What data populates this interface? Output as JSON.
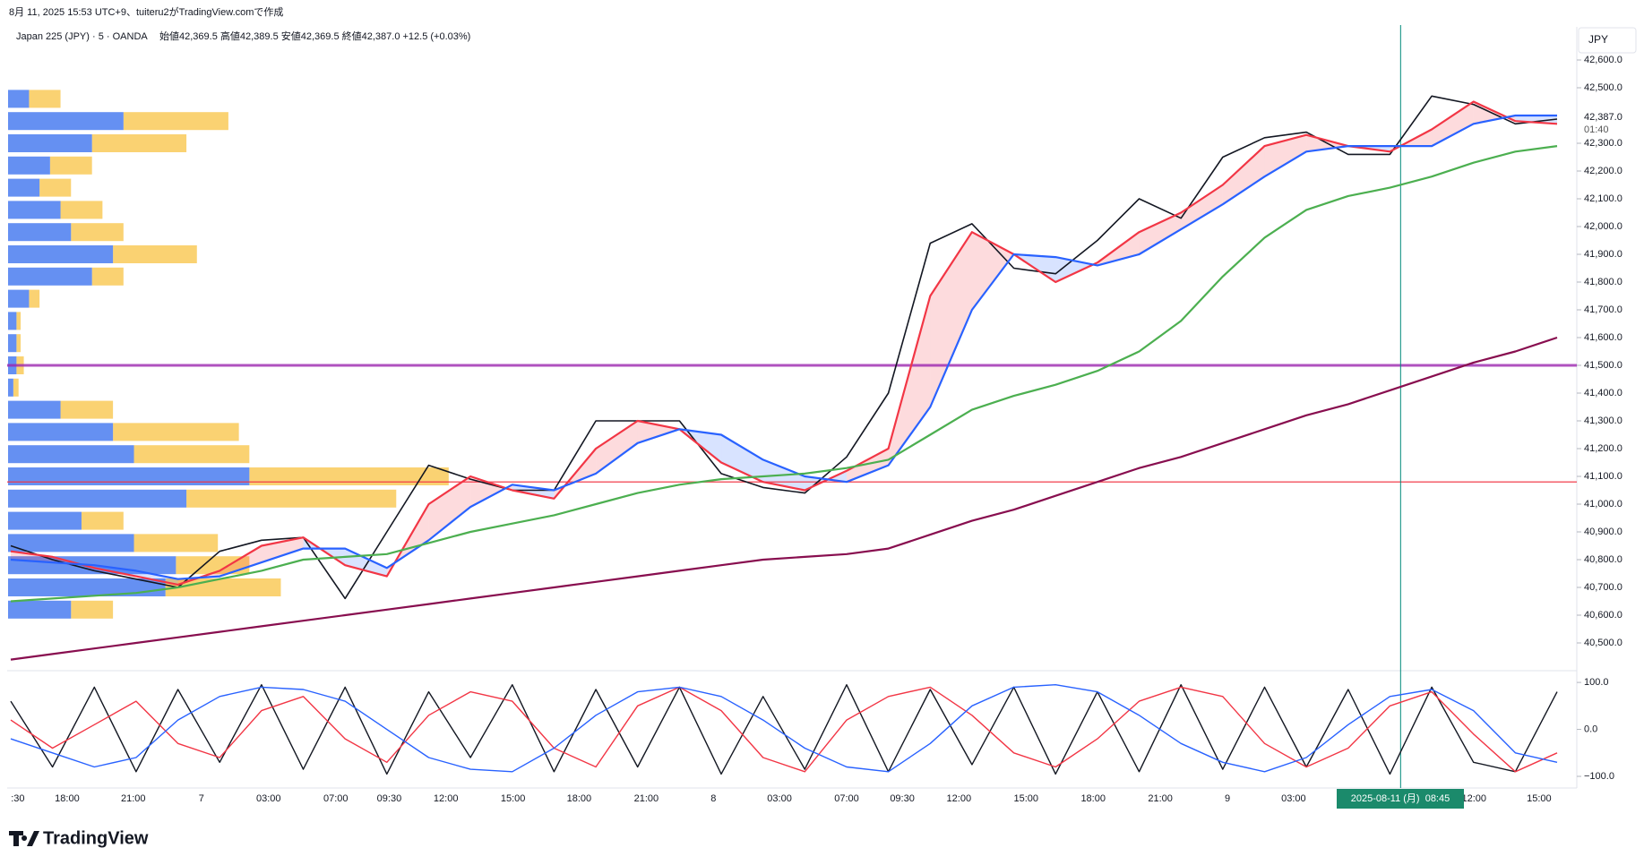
{
  "header": {
    "created": "8月 11, 2025 15:53 UTC+9、tuiteru2がTradingView.comで作成",
    "symbol": "Japan 225 (JPY) · 5 · OANDA",
    "ohlc": "始値42,369.5 高値42,389.5 安値42,369.5 終値42,387.0 +12.5 (+0.03%)",
    "currency": "JPY"
  },
  "logo": "TradingView",
  "chart_data": [
    {
      "type": "line",
      "ylim": [
        40400,
        42700
      ],
      "yticks": [
        {
          "value": 42600,
          "label": "42,600.0"
        },
        {
          "value": 42500,
          "label": "42,500.0"
        },
        {
          "value": 42300,
          "label": "42,300.0"
        },
        {
          "value": 42200,
          "label": "42,200.0"
        },
        {
          "value": 42100,
          "label": "42,100.0"
        },
        {
          "value": 42000,
          "label": "42,000.0"
        },
        {
          "value": 41900,
          "label": "41,900.0"
        },
        {
          "value": 41800,
          "label": "41,800.0"
        },
        {
          "value": 41700,
          "label": "41,700.0"
        },
        {
          "value": 41600,
          "label": "41,600.0"
        },
        {
          "value": 41500,
          "label": "41,500.0"
        },
        {
          "value": 41400,
          "label": "41,400.0"
        },
        {
          "value": 41300,
          "label": "41,300.0"
        },
        {
          "value": 41200,
          "label": "41,200.0"
        },
        {
          "value": 41100,
          "label": "41,100.0"
        },
        {
          "value": 41000,
          "label": "41,000.0"
        },
        {
          "value": 40900,
          "label": "40,900.0"
        },
        {
          "value": 40800,
          "label": "40,800.0"
        },
        {
          "value": 40700,
          "label": "40,700.0"
        },
        {
          "value": 40600,
          "label": "40,600.0"
        },
        {
          "value": 40500,
          "label": "40,500.0"
        }
      ],
      "grid": false,
      "series": [
        {
          "color": "#131722",
          "values": [
            40850,
            40800,
            40760,
            40730,
            40700,
            40830,
            40870,
            40880,
            40660,
            40900,
            41140,
            41090,
            41050,
            41050,
            41300,
            41300,
            41300,
            41110,
            41060,
            41040,
            41170,
            41400,
            41940,
            42010,
            41850,
            41830,
            41950,
            42100,
            42030,
            42250,
            42320,
            42340,
            42260,
            42260,
            42470,
            42440,
            42370,
            42387
          ]
        },
        {
          "color": "#f23645",
          "values": [
            40830,
            40810,
            40770,
            40740,
            40710,
            40760,
            40850,
            40880,
            40780,
            40740,
            41000,
            41100,
            41050,
            41020,
            41200,
            41300,
            41270,
            41150,
            41080,
            41050,
            41120,
            41200,
            41750,
            41980,
            41900,
            41800,
            41870,
            41980,
            42050,
            42150,
            42290,
            42330,
            42290,
            42270,
            42350,
            42450,
            42380,
            42370
          ]
        },
        {
          "color": "#2962ff",
          "values": [
            40800,
            40790,
            40780,
            40760,
            40730,
            40740,
            40790,
            40840,
            40840,
            40770,
            40870,
            40990,
            41070,
            41050,
            41110,
            41220,
            41270,
            41250,
            41160,
            41100,
            41080,
            41140,
            41350,
            41700,
            41900,
            41890,
            41860,
            41900,
            41990,
            42080,
            42180,
            42270,
            42290,
            42290,
            42290,
            42370,
            42400,
            42400
          ]
        },
        {
          "color": "#4caf50",
          "values": [
            40650,
            40660,
            40670,
            40680,
            40700,
            40730,
            40760,
            40800,
            40810,
            40820,
            40860,
            40900,
            40930,
            40960,
            41000,
            41040,
            41070,
            41090,
            41100,
            41110,
            41130,
            41160,
            41250,
            41340,
            41390,
            41430,
            41480,
            41550,
            41660,
            41820,
            41960,
            42060,
            42110,
            42140,
            42180,
            42230,
            42270,
            42290
          ]
        },
        {
          "color": "#880e4f",
          "values": [
            40440,
            40460,
            40480,
            40500,
            40520,
            40540,
            40560,
            40580,
            40600,
            40620,
            40640,
            40660,
            40680,
            40700,
            40720,
            40740,
            40760,
            40780,
            40800,
            40810,
            40820,
            40840,
            40890,
            40940,
            40980,
            41030,
            41080,
            41130,
            41170,
            41220,
            41270,
            41320,
            41360,
            41410,
            41460,
            41510,
            41550,
            41600
          ]
        }
      ],
      "hlines": [
        {
          "value": 41500,
          "color": "#9c27b0"
        },
        {
          "value": 41080,
          "color": "#f23645"
        }
      ],
      "volume_profile": {
        "levels": [
          40620,
          40700,
          40780,
          40860,
          40940,
          41020,
          41100,
          41180,
          41260,
          41340,
          41420,
          41500,
          41580,
          41660,
          41740,
          41820,
          41900,
          41980,
          42060,
          42140,
          42220,
          42300,
          42380,
          42460
        ],
        "up": [
          60,
          150,
          160,
          120,
          70,
          170,
          230,
          120,
          100,
          50,
          5,
          8,
          8,
          8,
          20,
          80,
          100,
          60,
          50,
          30,
          40,
          80,
          110,
          20
        ],
        "down": [
          40,
          110,
          70,
          80,
          40,
          200,
          190,
          110,
          120,
          50,
          5,
          7,
          4,
          4,
          10,
          30,
          80,
          50,
          40,
          30,
          40,
          90,
          100,
          30
        ]
      },
      "last_label": {
        "value": 42387,
        "label": "42,387.0"
      },
      "countdown": "01:40",
      "x_labels": [
        ":30",
        "18:00",
        "21:00",
        "7",
        "03:00",
        "07:00",
        "09:30",
        "12:00",
        "15:00",
        "18:00",
        "21:00",
        "8",
        "03:00",
        "07:00",
        "09:30",
        "12:00",
        "15:00",
        "18:00",
        "21:00",
        "9",
        "03:00",
        "12:00",
        "15:00"
      ],
      "crosshair_label": "2025-08-11 (月)  08:45"
    },
    {
      "type": "line",
      "ylim": [
        -120,
        125
      ],
      "yticks": [
        {
          "value": 100,
          "label": "100.0"
        },
        {
          "value": 0,
          "label": "0.0"
        },
        {
          "value": -100,
          "label": "−100.0"
        }
      ],
      "series": [
        {
          "color": "#131722",
          "values": [
            60,
            -80,
            90,
            -90,
            85,
            -70,
            95,
            -85,
            90,
            -95,
            80,
            -60,
            95,
            -90,
            85,
            -80,
            90,
            -95,
            70,
            -85,
            95,
            -90,
            85,
            -75,
            90,
            -95,
            80,
            -90,
            95,
            -85,
            90,
            -80,
            85,
            -95,
            90,
            -70,
            -90,
            80
          ]
        },
        {
          "color": "#f23645",
          "values": [
            20,
            -40,
            10,
            60,
            -30,
            -60,
            40,
            70,
            -20,
            -70,
            30,
            80,
            60,
            -40,
            -80,
            50,
            90,
            40,
            -60,
            -90,
            20,
            70,
            90,
            30,
            -50,
            -80,
            -20,
            60,
            90,
            70,
            -30,
            -80,
            -40,
            50,
            80,
            -10,
            -90,
            -50
          ]
        },
        {
          "color": "#2962ff",
          "values": [
            -20,
            -50,
            -80,
            -60,
            20,
            70,
            90,
            85,
            60,
            0,
            -60,
            -85,
            -90,
            -40,
            30,
            80,
            90,
            70,
            20,
            -40,
            -80,
            -90,
            -30,
            50,
            90,
            95,
            80,
            30,
            -30,
            -70,
            -90,
            -60,
            10,
            70,
            85,
            40,
            -50,
            -70
          ]
        }
      ]
    }
  ]
}
